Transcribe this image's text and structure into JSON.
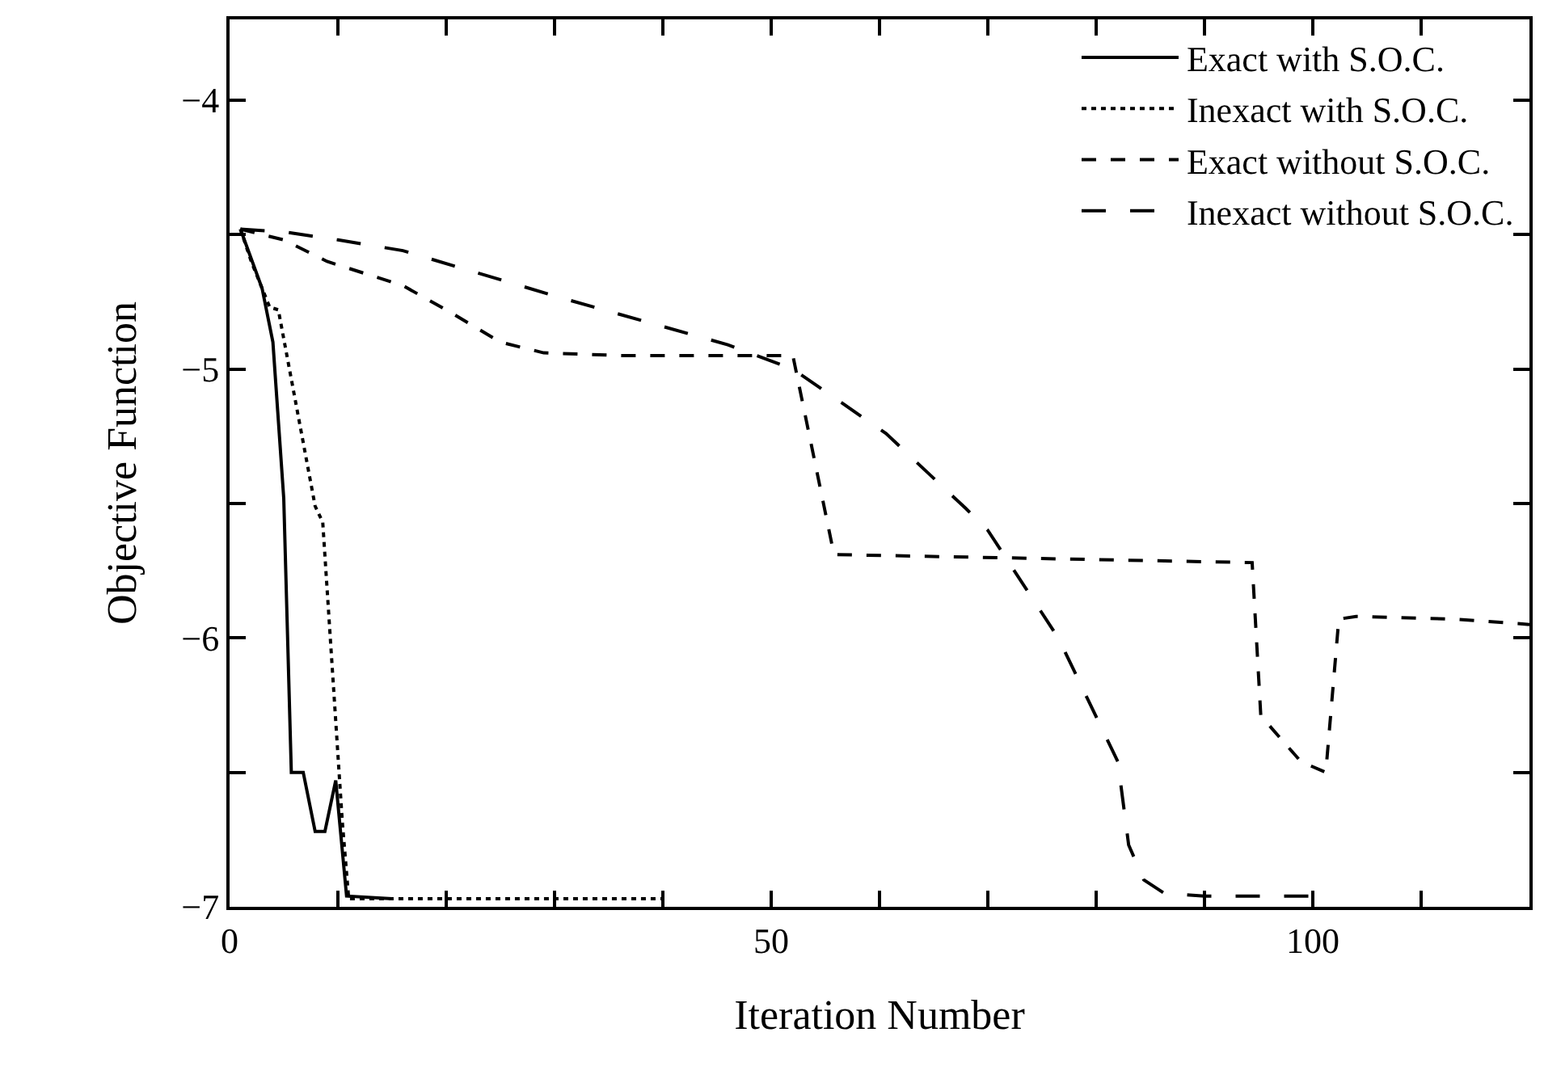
{
  "chart_data": {
    "type": "line",
    "xlabel": "Iteration Number",
    "ylabel": "Objective Function",
    "xlim": [
      0,
      120
    ],
    "ylim": [
      -7,
      -3.7
    ],
    "xticks": [
      0,
      {
        "value": 10,
        "label": null
      },
      {
        "value": 20,
        "label": null
      },
      {
        "value": 30,
        "label": null
      },
      {
        "value": 40,
        "label": null
      },
      50,
      {
        "value": 60,
        "label": null
      },
      {
        "value": 70,
        "label": null
      },
      {
        "value": 80,
        "label": null
      },
      {
        "value": 90,
        "label": null
      },
      100,
      {
        "value": 110,
        "label": null
      }
    ],
    "yticks": [
      {
        "value": -7,
        "label": "−7"
      },
      {
        "value": -6.5,
        "label": null
      },
      {
        "value": -6,
        "label": "−6"
      },
      {
        "value": -5.5,
        "label": null
      },
      {
        "value": -5,
        "label": "−5"
      },
      {
        "value": -4.5,
        "label": null
      },
      {
        "value": -4,
        "label": "−4"
      }
    ],
    "legend": "top right",
    "marker": "none",
    "series": [
      {
        "name": "Exact with S.O.C.",
        "color": "#000000",
        "line_style": "solid",
        "x": [
          1,
          3,
          4,
          5,
          5.7,
          6.8,
          7.9,
          8.8,
          9.8,
          10.8,
          15
        ],
        "values": [
          -4.48,
          -4.7,
          -4.9,
          -5.48,
          -6.5,
          -6.5,
          -6.72,
          -6.72,
          -6.53,
          -6.96,
          -6.97
        ]
      },
      {
        "name": "Inexact with S.O.C.",
        "color": "#000000",
        "line_style": "dotted",
        "x": [
          1,
          2,
          3.7,
          4.5,
          7.9,
          8.6,
          10.4,
          11,
          40
        ],
        "values": [
          -4.48,
          -4.6,
          -4.77,
          -4.78,
          -5.51,
          -5.57,
          -6.68,
          -6.97,
          -6.97
        ]
      },
      {
        "name": "Exact without S.O.C.",
        "color": "#000000",
        "line_style": "dashed",
        "x": [
          1,
          5,
          9,
          16,
          20,
          25,
          29,
          36,
          52,
          55.8,
          94.4,
          95.2,
          98.9,
          101.2,
          102.4,
          104,
          113,
          120
        ],
        "values": [
          -4.48,
          -4.52,
          -4.6,
          -4.69,
          -4.78,
          -4.9,
          -4.94,
          -4.95,
          -4.95,
          -5.69,
          -5.72,
          -6.29,
          -6.46,
          -6.5,
          -5.93,
          -5.92,
          -5.93,
          -5.95
        ]
      },
      {
        "name": "Inexact without S.O.C.",
        "color": "#000000",
        "line_style": "longdash",
        "x": [
          1,
          5,
          10,
          16,
          31,
          46,
          52,
          60.6,
          68,
          70,
          76.5,
          82,
          83,
          84.4,
          86.3,
          90,
          100
        ],
        "values": [
          -4.48,
          -4.49,
          -4.52,
          -4.56,
          -4.74,
          -4.91,
          -5.0,
          -5.24,
          -5.52,
          -5.6,
          -6.0,
          -6.46,
          -6.77,
          -6.9,
          -6.95,
          -6.96,
          -6.96
        ]
      }
    ]
  }
}
